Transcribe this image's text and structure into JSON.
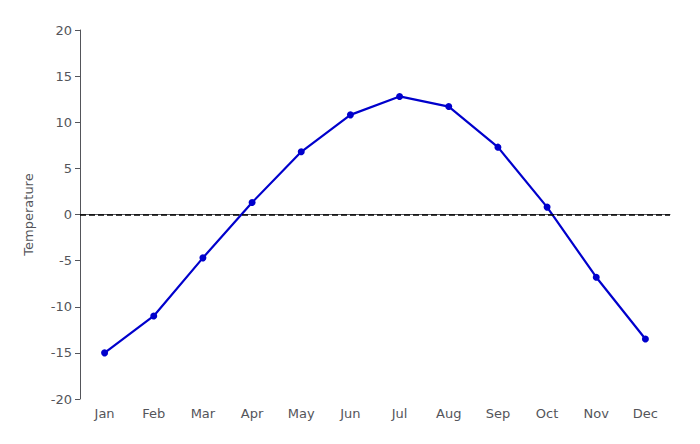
{
  "chart_data": {
    "type": "line",
    "categories": [
      "Jan",
      "Feb",
      "Mar",
      "Apr",
      "May",
      "Jun",
      "Jul",
      "Aug",
      "Sep",
      "Oct",
      "Nov",
      "Dec"
    ],
    "values": [
      -15.0,
      -11.0,
      -4.7,
      1.3,
      6.8,
      10.8,
      12.8,
      11.7,
      7.3,
      0.8,
      -6.8,
      -13.5
    ],
    "color": "#0000CC",
    "marker": "circle",
    "ylabel": "Temperature",
    "ylim": [
      -20,
      20
    ],
    "yticks": [
      -20,
      -15,
      -10,
      -5,
      0,
      5,
      10,
      15,
      20
    ],
    "grid": false,
    "hline": {
      "y": 0,
      "color": "black",
      "line_style": "dashed"
    }
  }
}
